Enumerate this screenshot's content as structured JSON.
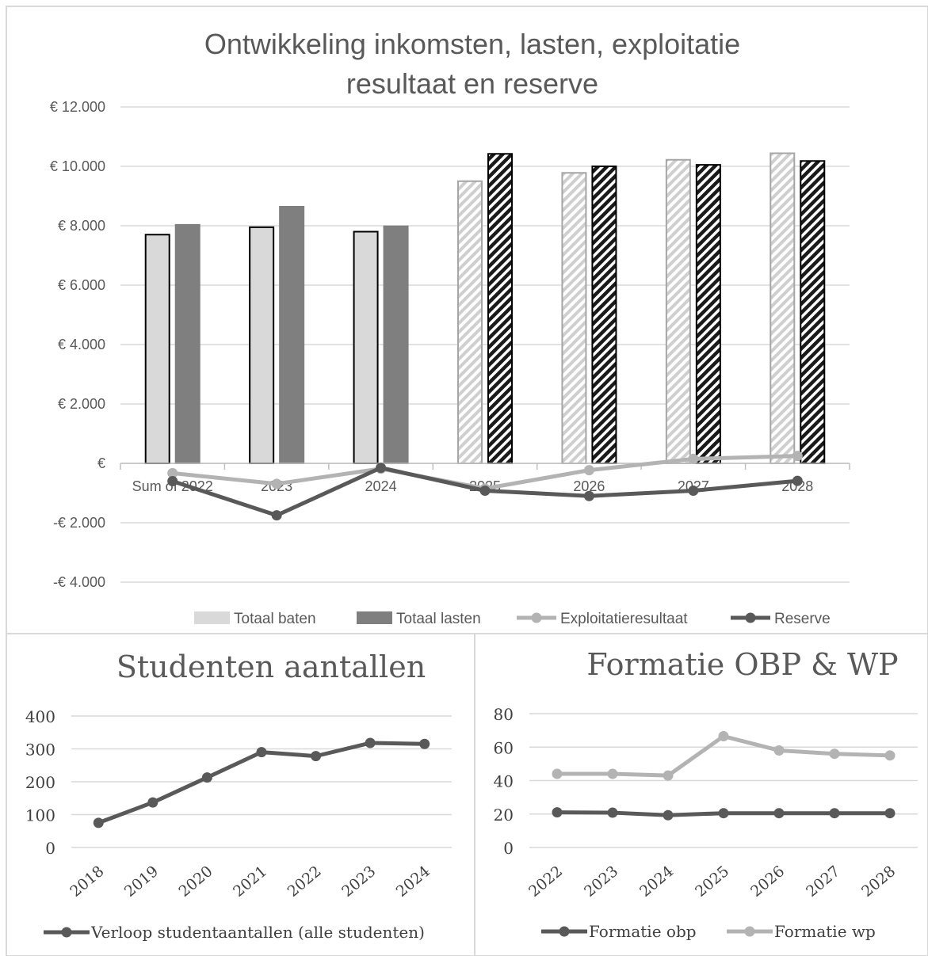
{
  "chart_data": [
    {
      "type": "bar",
      "title": "Ontwikkeling inkomsten, lasten, exploitatie resultaat en reserve",
      "title_lines": [
        "Ontwikkeling inkomsten, lasten, exploitatie",
        "resultaat en reserve"
      ],
      "categories": [
        "Sum of 2022",
        "2023",
        "2024",
        "2025",
        "2026",
        "2027",
        "2028"
      ],
      "ylim": [
        -4000,
        12000
      ],
      "yticks": [
        -4000,
        -2000,
        0,
        2000,
        4000,
        6000,
        8000,
        10000,
        12000
      ],
      "ytick_labels": [
        "-€ 4.000",
        "-€ 2.000",
        "€",
        "€ 2.000",
        "€ 4.000",
        "€ 6.000",
        "€ 8.000",
        "€ 10.000",
        "€ 12.000"
      ],
      "grid": true,
      "legend": "bottom",
      "forecast_from_index": 3,
      "series": [
        {
          "name": "Totaal baten",
          "kind": "bar",
          "color": "#d9d9d9",
          "values": [
            7700,
            7950,
            7800,
            9500,
            9780,
            10220,
            10440
          ]
        },
        {
          "name": "Totaal lasten",
          "kind": "bar",
          "color": "#7f7f7f",
          "values": [
            8030,
            8640,
            7980,
            10420,
            10000,
            10050,
            10180
          ]
        },
        {
          "name": "Exploitatieresultaat",
          "kind": "line",
          "color": "#b3b3b3",
          "values": [
            -330,
            -690,
            -180,
            -850,
            -230,
            150,
            250
          ]
        },
        {
          "name": "Reserve",
          "kind": "line",
          "color": "#595959",
          "values": [
            -600,
            -1750,
            -150,
            -920,
            -1100,
            -920,
            -590
          ]
        }
      ]
    },
    {
      "type": "line",
      "title": "Studenten aantallen",
      "categories": [
        "2018",
        "2019",
        "2020",
        "2021",
        "2022",
        "2023",
        "2024"
      ],
      "ylim": [
        0,
        400
      ],
      "yticks": [
        0,
        100,
        200,
        300,
        400
      ],
      "ytick_labels": [
        "0",
        "100",
        "200",
        "300",
        "400"
      ],
      "grid": true,
      "legend": "bottom",
      "series": [
        {
          "name": "Verloop studentaantallen (alle studenten)",
          "color": "#595959",
          "values": [
            75,
            137,
            213,
            290,
            278,
            318,
            315
          ]
        }
      ]
    },
    {
      "type": "line",
      "title": "Formatie OBP & WP",
      "categories": [
        "2022",
        "2023",
        "2024",
        "2025",
        "2026",
        "2027",
        "2028"
      ],
      "ylim": [
        0,
        80
      ],
      "yticks": [
        0,
        20,
        40,
        60,
        80
      ],
      "ytick_labels": [
        "0",
        "20",
        "40",
        "60",
        "80"
      ],
      "grid": true,
      "legend": "bottom",
      "series": [
        {
          "name": "Formatie obp",
          "color": "#595959",
          "values": [
            21,
            20.8,
            19.3,
            20.5,
            20.5,
            20.5,
            20.5
          ]
        },
        {
          "name": "Formatie wp",
          "color": "#b3b3b3",
          "values": [
            44,
            44,
            43,
            66.5,
            58,
            56,
            55
          ]
        }
      ]
    }
  ]
}
